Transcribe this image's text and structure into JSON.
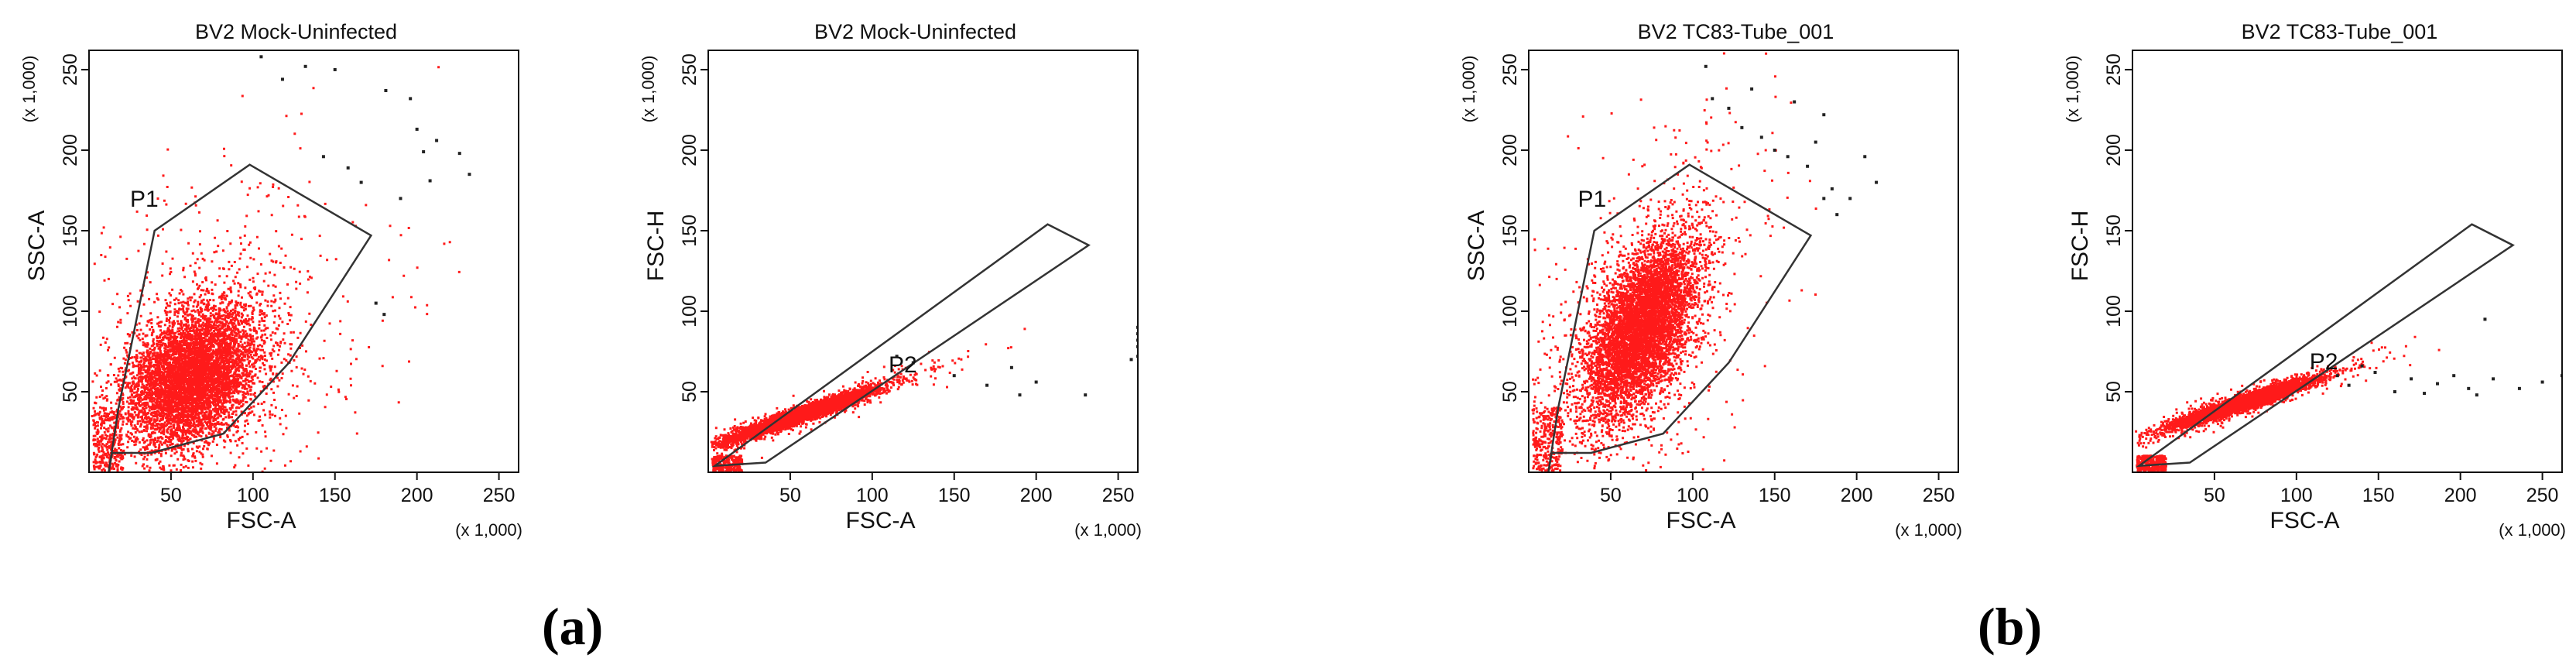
{
  "captions": {
    "a": "(a)",
    "b": "(b)"
  },
  "colors": {
    "dots": "#ff1a1a",
    "outlier": "#222222",
    "gate": "#333333",
    "axis": "#111111"
  },
  "chart_data": [
    {
      "id": "a1",
      "type": "scatter",
      "title": "BV2 Mock-Uninfected",
      "xlabel": "FSC-A",
      "ylabel": "SSC-A",
      "scale_note": "(x 1,000)",
      "xlim": [
        0,
        262
      ],
      "ylim": [
        0,
        262
      ],
      "xticks": [
        50,
        100,
        150,
        200,
        250
      ],
      "yticks": [
        50,
        100,
        150,
        200,
        250
      ],
      "gate": {
        "name": "P1",
        "label_at": [
          25,
          165
        ],
        "polygon": [
          [
            12,
            0
          ],
          [
            18,
            40
          ],
          [
            40,
            150
          ],
          [
            98,
            191
          ],
          [
            172,
            147
          ],
          [
            122,
            68
          ],
          [
            82,
            24
          ],
          [
            38,
            12
          ],
          [
            14,
            12
          ]
        ]
      },
      "cluster": {
        "cx": 62,
        "cy": 60,
        "sx": 20,
        "sy": 22,
        "rho": 0.35,
        "n": 6000,
        "scatter_n": 900,
        "scatter_spread": 2.6
      },
      "outliers": [
        [
          105,
          258
        ],
        [
          118,
          244
        ],
        [
          132,
          252
        ],
        [
          150,
          250
        ],
        [
          181,
          237
        ],
        [
          196,
          232
        ],
        [
          200,
          213
        ],
        [
          204,
          199
        ],
        [
          212,
          206
        ],
        [
          226,
          198
        ],
        [
          232,
          185
        ],
        [
          208,
          181
        ],
        [
          190,
          170
        ],
        [
          175,
          105
        ],
        [
          180,
          98
        ],
        [
          143,
          196
        ],
        [
          158,
          189
        ],
        [
          166,
          180
        ]
      ]
    },
    {
      "id": "a2",
      "type": "scatter",
      "title": "BV2 Mock-Uninfected",
      "xlabel": "FSC-A",
      "ylabel": "FSC-H",
      "scale_note": "(x 1,000)",
      "xlim": [
        0,
        262
      ],
      "ylim": [
        0,
        262
      ],
      "xticks": [
        50,
        100,
        150,
        200,
        250
      ],
      "yticks": [
        50,
        100,
        150,
        200,
        250
      ],
      "gate": {
        "name": "P2",
        "label_at": [
          110,
          62
        ],
        "polygon": [
          [
            4,
            4
          ],
          [
            207,
            154
          ],
          [
            232,
            141
          ],
          [
            35,
            6
          ]
        ]
      },
      "cluster": {
        "cx": 55,
        "cy": 36,
        "sx": 22,
        "sy": 8,
        "rho": 0.96,
        "n": 5000,
        "scatter_n": 400,
        "scatter_spread": 2.2
      },
      "outliers": [
        [
          150,
          60
        ],
        [
          170,
          54
        ],
        [
          185,
          65
        ],
        [
          190,
          48
        ],
        [
          200,
          56
        ],
        [
          230,
          48
        ],
        [
          258,
          70
        ],
        [
          262,
          72
        ],
        [
          262,
          78
        ],
        [
          262,
          82
        ],
        [
          262,
          86
        ],
        [
          262,
          90
        ],
        [
          125,
          68
        ],
        [
          115,
          72
        ]
      ]
    },
    {
      "id": "b1",
      "type": "scatter",
      "title": "BV2 TC83-Tube_001",
      "xlabel": "FSC-A",
      "ylabel": "SSC-A",
      "scale_note": "(x 1,000)",
      "xlim": [
        0,
        262
      ],
      "ylim": [
        0,
        262
      ],
      "xticks": [
        50,
        100,
        150,
        200,
        250
      ],
      "yticks": [
        50,
        100,
        150,
        200,
        250
      ],
      "gate": {
        "name": "P1",
        "label_at": [
          30,
          165
        ],
        "polygon": [
          [
            12,
            0
          ],
          [
            18,
            40
          ],
          [
            40,
            150
          ],
          [
            98,
            191
          ],
          [
            172,
            147
          ],
          [
            122,
            68
          ],
          [
            82,
            24
          ],
          [
            38,
            12
          ],
          [
            14,
            12
          ]
        ]
      },
      "cluster": {
        "cx": 68,
        "cy": 90,
        "sx": 17,
        "sy": 28,
        "rho": 0.55,
        "n": 6000,
        "scatter_n": 700,
        "scatter_spread": 2.4
      },
      "outliers": [
        [
          112,
          232
        ],
        [
          122,
          226
        ],
        [
          136,
          238
        ],
        [
          130,
          214
        ],
        [
          142,
          208
        ],
        [
          150,
          200
        ],
        [
          158,
          196
        ],
        [
          170,
          190
        ],
        [
          185,
          176
        ],
        [
          196,
          170
        ],
        [
          205,
          196
        ],
        [
          212,
          180
        ],
        [
          180,
          222
        ],
        [
          162,
          230
        ],
        [
          175,
          205
        ],
        [
          108,
          252
        ],
        [
          188,
          160
        ],
        [
          180,
          170
        ]
      ]
    },
    {
      "id": "b2",
      "type": "scatter",
      "title": "BV2 TC83-Tube_001",
      "xlabel": "FSC-A",
      "ylabel": "FSC-H",
      "scale_note": "(x 1,000)",
      "xlim": [
        0,
        262
      ],
      "ylim": [
        0,
        262
      ],
      "xticks": [
        50,
        100,
        150,
        200,
        250
      ],
      "yticks": [
        50,
        100,
        150,
        200,
        250
      ],
      "gate": {
        "name": "P2",
        "label_at": [
          108,
          64
        ],
        "polygon": [
          [
            4,
            4
          ],
          [
            207,
            154
          ],
          [
            232,
            141
          ],
          [
            35,
            6
          ]
        ]
      },
      "cluster": {
        "cx": 68,
        "cy": 44,
        "sx": 20,
        "sy": 7,
        "rho": 0.95,
        "n": 5000,
        "scatter_n": 500,
        "scatter_spread": 2.1
      },
      "outliers": [
        [
          125,
          60
        ],
        [
          132,
          54
        ],
        [
          148,
          62
        ],
        [
          160,
          50
        ],
        [
          170,
          58
        ],
        [
          178,
          49
        ],
        [
          186,
          55
        ],
        [
          196,
          60
        ],
        [
          205,
          52
        ],
        [
          210,
          48
        ],
        [
          220,
          58
        ],
        [
          236,
          52
        ],
        [
          250,
          56
        ],
        [
          262,
          60
        ],
        [
          215,
          95
        ],
        [
          140,
          66
        ]
      ]
    }
  ]
}
